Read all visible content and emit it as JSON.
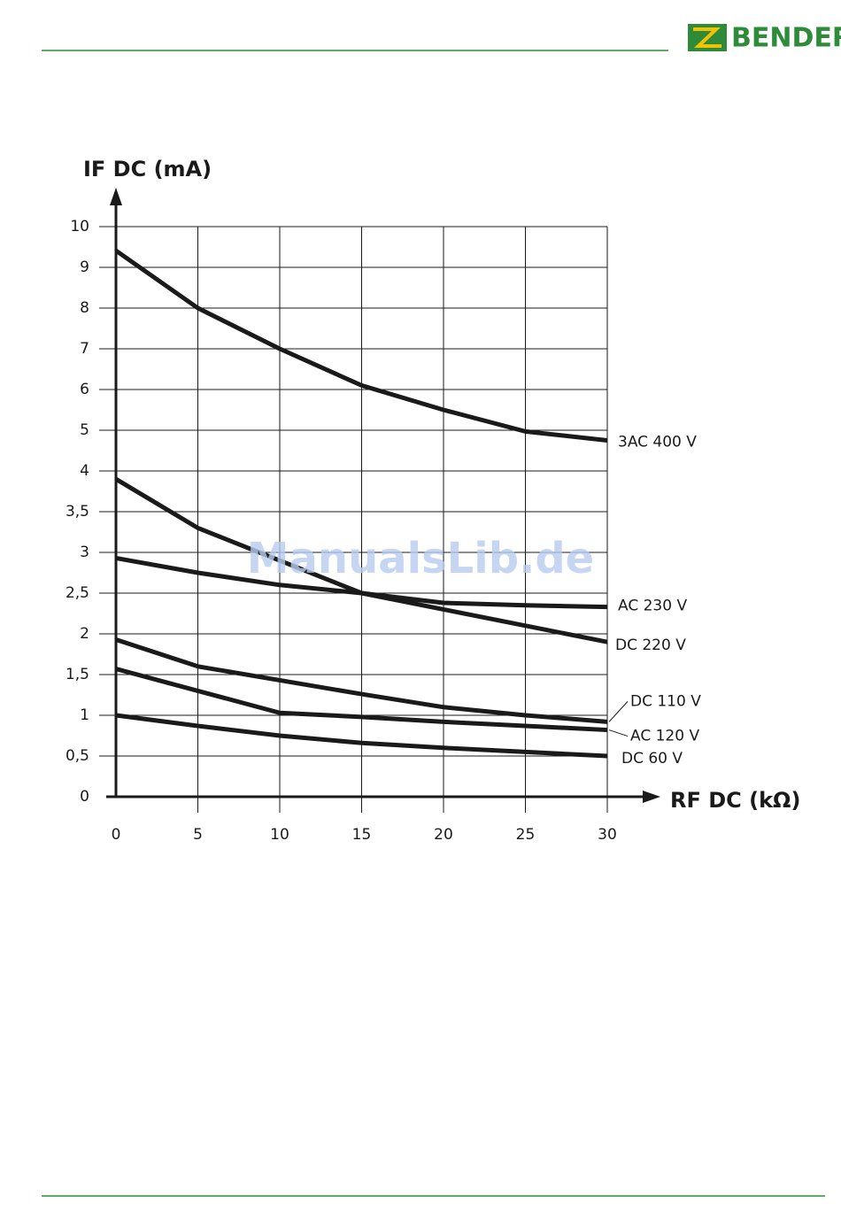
{
  "logo": "BENDER",
  "watermark": "ManualsLib.de",
  "chart_data": {
    "type": "line",
    "y_label": "IF DC (mA)",
    "x_label": "RF DC (kΩ)",
    "x": [
      0,
      5,
      10,
      15,
      20,
      25,
      30
    ],
    "xlim": [
      0,
      30
    ],
    "xticks": [
      0,
      5,
      10,
      15,
      20,
      25,
      30
    ],
    "ylim": [
      0,
      10
    ],
    "yticks": [
      0,
      {
        "value": 0.5,
        "label": "0,5"
      },
      1,
      {
        "value": 1.5,
        "label": "1,5"
      },
      2,
      {
        "value": 2.5,
        "label": "2,5"
      },
      3,
      {
        "value": 3.5,
        "label": "3,5"
      },
      4,
      5,
      6,
      7,
      8,
      9,
      10
    ],
    "grid": true,
    "series": [
      {
        "name": "3AC 400 V",
        "color": "#1a1a1a",
        "values": [
          9.41,
          8,
          7,
          6.1,
          5.5,
          4.97,
          4.75
        ]
      },
      {
        "name": "AC 230 V",
        "color": "#1a1a1a",
        "values": [
          2.93,
          2.75,
          2.6,
          2.5,
          2.38,
          2.35,
          2.33
        ]
      },
      {
        "name": "DC 220 V",
        "color": "#1a1a1a",
        "values": [
          3.9,
          3.3,
          2.9,
          2.5,
          2.3,
          2.1,
          1.9
        ]
      },
      {
        "name": "DC 110 V",
        "color": "#1a1a1a",
        "values": [
          1.93,
          1.6,
          1.43,
          1.26,
          1.1,
          1.0,
          0.92
        ]
      },
      {
        "name": "AC 120 V",
        "color": "#1a1a1a",
        "values": [
          1.57,
          1.3,
          1.03,
          0.98,
          0.92,
          0.87,
          0.82
        ]
      },
      {
        "name": "DC 60 V",
        "color": "#1a1a1a",
        "values": [
          1.0,
          0.87,
          0.75,
          0.66,
          0.6,
          0.55,
          0.5
        ]
      }
    ]
  }
}
